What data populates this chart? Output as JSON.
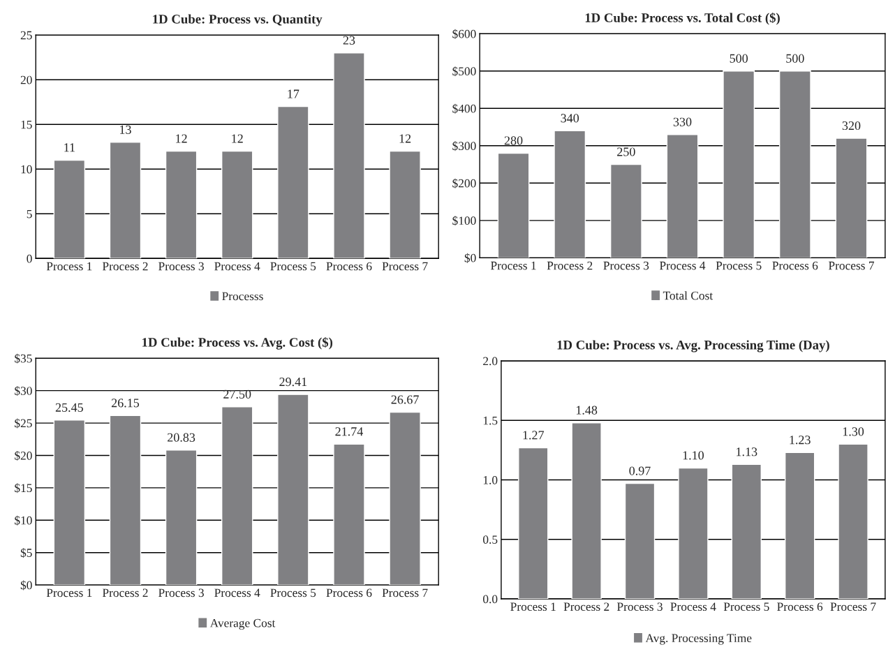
{
  "chart_data": [
    {
      "type": "bar",
      "title": "1D Cube: Process vs. Quantity",
      "categories": [
        "Process 1",
        "Process 2",
        "Process 3",
        "Process 4",
        "Process 5",
        "Process 6",
        "Process 7"
      ],
      "series": [
        {
          "name": "Processs",
          "color": "#808083",
          "values": [
            11,
            13,
            12,
            12,
            17,
            23,
            12
          ]
        }
      ],
      "ylim": [
        0,
        25
      ],
      "yticks": [
        0,
        5,
        10,
        15,
        20,
        25
      ],
      "grid": "y",
      "legend": "bottom",
      "data_labels": true
    },
    {
      "type": "bar",
      "title": "1D Cube: Process vs. Total Cost ($)",
      "categories": [
        "Process 1",
        "Process 2",
        "Process 3",
        "Process 4",
        "Process 5",
        "Process 6",
        "Process 7"
      ],
      "series": [
        {
          "name": "Total Cost",
          "color": "#808083",
          "values": [
            280,
            340,
            250,
            330,
            500,
            500,
            320
          ]
        }
      ],
      "ylim": [
        0,
        600
      ],
      "yticks": [
        {
          "value": 0,
          "label": "$0"
        },
        {
          "value": 100,
          "label": "$100"
        },
        {
          "value": 200,
          "label": "$200"
        },
        {
          "value": 300,
          "label": "$300"
        },
        {
          "value": 400,
          "label": "$400"
        },
        {
          "value": 500,
          "label": "$500"
        },
        {
          "value": 600,
          "label": "$600"
        }
      ],
      "grid": "y",
      "legend": "bottom",
      "data_labels": true
    },
    {
      "type": "bar",
      "title": "1D Cube: Process vs. Avg. Cost ($)",
      "categories": [
        "Process 1",
        "Process 2",
        "Process 3",
        "Process 4",
        "Process 5",
        "Process 6",
        "Process 7"
      ],
      "series": [
        {
          "name": "Average Cost",
          "color": "#808083",
          "values": [
            25.45,
            26.15,
            20.83,
            27.5,
            29.41,
            21.74,
            26.67
          ],
          "value_labels": [
            "25.45",
            "26.15",
            "20.83",
            "27.50",
            "29.41",
            "21.74",
            "26.67"
          ]
        }
      ],
      "ylim": [
        0,
        35
      ],
      "yticks": [
        {
          "value": 0,
          "label": "$0"
        },
        {
          "value": 5,
          "label": "$5"
        },
        {
          "value": 10,
          "label": "$10"
        },
        {
          "value": 15,
          "label": "$15"
        },
        {
          "value": 20,
          "label": "$20"
        },
        {
          "value": 25,
          "label": "$25"
        },
        {
          "value": 30,
          "label": "$30"
        },
        {
          "value": 35,
          "label": "$35"
        }
      ],
      "grid": "y",
      "legend": "bottom"
    },
    {
      "type": "bar",
      "title": "1D Cube: Process vs. Avg. Processing Time (Day)",
      "categories": [
        "Process 1",
        "Process 2",
        "Process 3",
        "Process 4",
        "Process 5",
        "Process 6",
        "Process 7"
      ],
      "series": [
        {
          "name": "Avg. Processing Time",
          "color": "#808083",
          "values": [
            1.27,
            1.48,
            0.97,
            1.1,
            1.13,
            1.23,
            1.3
          ],
          "value_labels": [
            "1.27",
            "1.48",
            "0.97",
            "1.10",
            "1.13",
            "1.23",
            "1.30"
          ]
        }
      ],
      "ylim": [
        0,
        2
      ],
      "yticks": [
        {
          "value": 0,
          "label": "0.0"
        },
        {
          "value": 0.5,
          "label": "0.5"
        },
        {
          "value": 1,
          "label": "1.0"
        },
        {
          "value": 1.5,
          "label": "1.5"
        },
        {
          "value": 2,
          "label": "2.0"
        }
      ],
      "grid": "y",
      "legend": "bottom"
    }
  ]
}
